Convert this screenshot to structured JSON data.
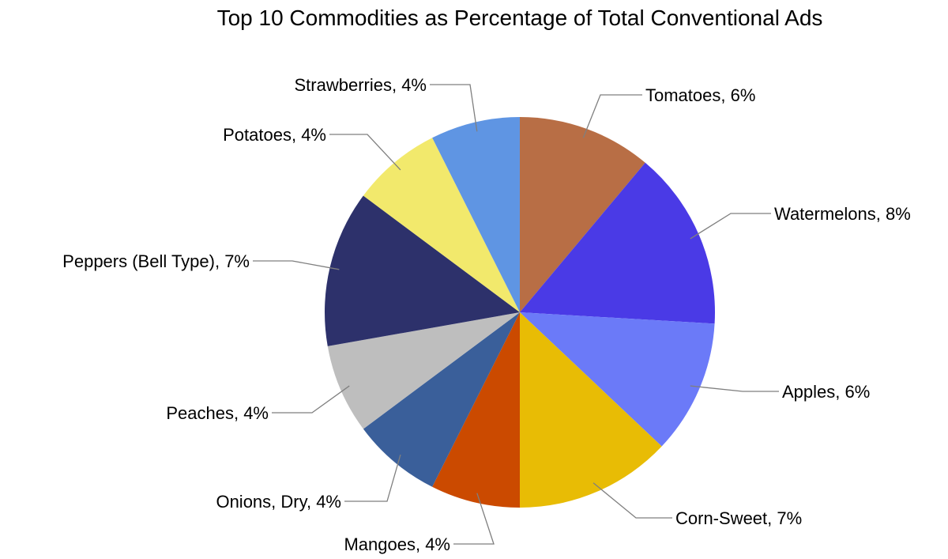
{
  "chart_data": {
    "type": "pie",
    "title": "Top 10 Commodities as Percentage of Total Conventional Ads",
    "start_angle": "top",
    "direction": "clockwise",
    "unit": "%",
    "slices": [
      {
        "label": "Tomatoes",
        "value": 6,
        "text": "Tomatoes, 6%",
        "color": "#B86E45"
      },
      {
        "label": "Watermelons",
        "value": 8,
        "text": "Watermelons, 8%",
        "color": "#4A3AE6"
      },
      {
        "label": "Apples",
        "value": 6,
        "text": "Apples, 6%",
        "color": "#6B7AF8"
      },
      {
        "label": "Corn-Sweet",
        "value": 7,
        "text": "Corn-Sweet, 7%",
        "color": "#E8BC05"
      },
      {
        "label": "Mangoes",
        "value": 4,
        "text": "Mangoes, 4%",
        "color": "#CB4A00"
      },
      {
        "label": "Onions, Dry",
        "value": 4,
        "text": "Onions, Dry, 4%",
        "color": "#3A5F9A"
      },
      {
        "label": "Peaches",
        "value": 4,
        "text": "Peaches, 4%",
        "color": "#BEBEBE"
      },
      {
        "label": "Peppers (Bell Type)",
        "value": 7,
        "text": "Peppers (Bell Type), 7%",
        "color": "#2D316B"
      },
      {
        "label": "Potatoes",
        "value": 4,
        "text": "Potatoes, 4%",
        "color": "#F2E96C"
      },
      {
        "label": "Strawberries",
        "value": 4,
        "text": "Strawberries, 4%",
        "color": "#5F95E3"
      }
    ],
    "legend": "none",
    "leader_line_color": "#7F7F7F"
  }
}
